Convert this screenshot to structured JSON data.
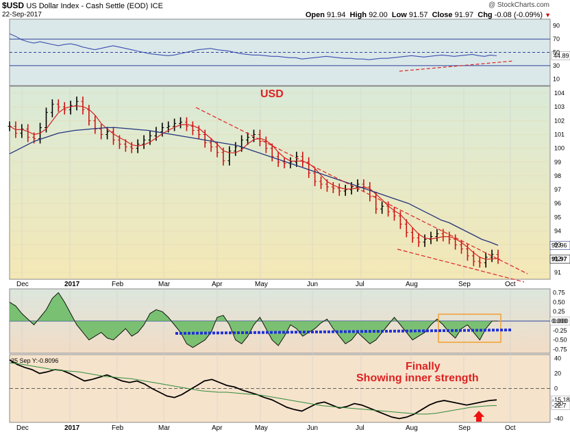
{
  "header": {
    "symbol": "$USD",
    "name": "US Dollar Index - Cash Settle (EOD)",
    "exchange": "ICE",
    "date": "22-Sep-2017",
    "copyright": "@ StockCharts.com",
    "open_label": "Open",
    "open": "91.94",
    "high_label": "High",
    "high": "92.00",
    "low_label": "Low",
    "low": "91.57",
    "close_label": "Close",
    "close": "91.97",
    "chg_label": "Chg",
    "chg": "-0.08 (-0.09%)",
    "down_arrow": "▼"
  },
  "annotations": {
    "usd": "USD",
    "finally": "Finally",
    "inner": "Showing inner strength",
    "cmf_label": "25 Sep Y:-0.8096"
  },
  "colors": {
    "price_bg": "#f3e9b6",
    "rsi_bg": "#dde9ea",
    "cmf_bg": "#f1dcc4",
    "bottom_bg": "#f7e7d3",
    "red": "#dd2222",
    "blue": "#2a3f9a",
    "green": "#33a035"
  },
  "chart_data": [
    {
      "type": "line",
      "panel": "RSI",
      "ylim": [
        0,
        100
      ],
      "yticks": [
        "90",
        "70",
        "50",
        "30",
        "10"
      ],
      "levels": [
        70,
        50,
        30
      ],
      "last_label": "44.89",
      "values": [
        78,
        74,
        69,
        66,
        64,
        66,
        64,
        62,
        60,
        62,
        63,
        61,
        58,
        56,
        54,
        56,
        58,
        60,
        58,
        56,
        54,
        52,
        50,
        48,
        47,
        46,
        45,
        46,
        48,
        50,
        52,
        54,
        55,
        56,
        54,
        53,
        52,
        50,
        48,
        47,
        46,
        46,
        45,
        44,
        44,
        43,
        42,
        42,
        40,
        41,
        42,
        43,
        44,
        43,
        42,
        41,
        41,
        40,
        40,
        39,
        40,
        41,
        41,
        42,
        43,
        44,
        45,
        44,
        43,
        44,
        45,
        46,
        45,
        44,
        45,
        46,
        47,
        45,
        44,
        46,
        44.89
      ]
    },
    {
      "type": "line",
      "panel": "price",
      "ylim": [
        90.5,
        104.5
      ],
      "yticks": [
        "104",
        "103",
        "102",
        "101",
        "100",
        "99",
        "98",
        "97",
        "96",
        "95",
        "94",
        "93",
        "92",
        "91"
      ],
      "xticks": [
        "Dec",
        "2017",
        "Feb",
        "Mar",
        "Apr",
        "May",
        "Jun",
        "Jul",
        "Aug",
        "Sep",
        "Oct"
      ],
      "price_labels": [
        "92.96",
        "91.97"
      ],
      "close_series": [
        101.6,
        101.1,
        101.4,
        100.8,
        100.7,
        101.5,
        102.6,
        103.2,
        103.0,
        102.8,
        103.1,
        103.4,
        102.8,
        102.0,
        101.4,
        101.0,
        101.2,
        100.6,
        100.3,
        100.1,
        100.0,
        100.3,
        100.6,
        100.9,
        101.2,
        101.5,
        101.6,
        101.8,
        101.9,
        101.6,
        101.3,
        101.0,
        100.4,
        100.1,
        99.7,
        99.1,
        99.8,
        100.1,
        100.6,
        100.8,
        101.0,
        100.5,
        100.0,
        99.4,
        99.0,
        98.9,
        99.0,
        99.4,
        99.0,
        98.2,
        97.6,
        97.4,
        97.2,
        97.1,
        96.9,
        97.0,
        97.2,
        97.4,
        97.2,
        96.5,
        95.6,
        95.8,
        95.4,
        95.1,
        94.5,
        93.9,
        93.5,
        93.2,
        93.4,
        93.6,
        93.8,
        93.6,
        93.4,
        93.0,
        92.7,
        92.2,
        91.8,
        91.7,
        92.1,
        92.3,
        91.97
      ],
      "ma50": [
        99.6,
        99.9,
        100.2,
        100.5,
        100.7,
        100.9,
        101.1,
        101.2,
        101.3,
        101.35,
        101.4,
        101.45,
        101.5,
        101.5,
        101.45,
        101.4,
        101.35,
        101.3,
        101.2,
        101.1,
        101.0,
        100.9,
        100.8,
        100.7,
        100.6,
        100.5,
        100.4,
        100.3,
        100.2,
        100.0,
        99.8,
        99.6,
        99.4,
        99.2,
        99.0,
        98.8,
        98.6,
        98.4,
        98.2,
        98.0,
        97.8,
        97.6,
        97.4,
        97.2,
        97.0,
        96.8,
        96.6,
        96.4,
        96.2,
        96.0,
        95.7,
        95.4,
        95.1,
        94.8,
        94.6,
        94.3,
        94.0,
        93.7,
        93.4,
        93.2,
        92.96
      ],
      "trendlines": [
        {
          "from": [
            "Mar",
            103.0
          ],
          "to": [
            "Oct",
            91.5
          ]
        },
        {
          "from": [
            "Aug",
            94.5
          ],
          "to": [
            "Oct",
            91.0
          ]
        }
      ]
    },
    {
      "type": "area",
      "panel": "CMF",
      "ylim": [
        -0.85,
        0.85
      ],
      "yticks": [
        "0.75",
        "0.50",
        "0.25",
        "0.000",
        "-0.25",
        "-0.50",
        "-0.75"
      ],
      "last_label": "0.000",
      "values": [
        0.5,
        0.4,
        0.2,
        0.05,
        -0.1,
        0.1,
        0.3,
        0.6,
        0.75,
        0.5,
        0.2,
        -0.1,
        -0.3,
        -0.5,
        -0.4,
        -0.3,
        -0.45,
        -0.5,
        -0.35,
        -0.2,
        -0.4,
        -0.3,
        -0.1,
        0.2,
        0.3,
        0.25,
        0.1,
        -0.1,
        -0.3,
        -0.6,
        -0.7,
        -0.6,
        -0.5,
        -0.3,
        0.1,
        0.15,
        -0.1,
        -0.5,
        -0.6,
        -0.4,
        -0.1,
        0.1,
        -0.2,
        -0.5,
        -0.65,
        -0.4,
        -0.1,
        -0.2,
        -0.4,
        -0.3,
        -0.2,
        -0.05,
        0.05,
        -0.2,
        -0.4,
        -0.6,
        -0.5,
        -0.3,
        -0.45,
        -0.6,
        -0.5,
        -0.3,
        -0.1,
        0.1,
        -0.1,
        -0.3,
        -0.5,
        -0.4,
        -0.3,
        -0.1,
        0.05,
        -0.1,
        -0.3,
        -0.45,
        -0.2,
        -0.1,
        -0.3,
        -0.5,
        -0.2,
        0.0,
        0.0
      ]
    },
    {
      "type": "line",
      "panel": "oscillator",
      "ylim": [
        -45,
        45
      ],
      "yticks": [
        "40",
        "20",
        "0",
        "-20",
        "-40"
      ],
      "last_labels": [
        "-15.18",
        "-22.7"
      ],
      "values": [
        38,
        32,
        28,
        25,
        20,
        22,
        25,
        24,
        20,
        15,
        10,
        12,
        15,
        18,
        14,
        10,
        8,
        10,
        6,
        0,
        -5,
        -10,
        -12,
        -8,
        -2,
        4,
        10,
        12,
        8,
        4,
        2,
        -2,
        -5,
        -8,
        -12,
        -15,
        -20,
        -25,
        -28,
        -30,
        -25,
        -20,
        -18,
        -22,
        -26,
        -24,
        -20,
        -22,
        -26,
        -30,
        -34,
        -38,
        -40,
        -38,
        -34,
        -28,
        -22,
        -18,
        -16,
        -18,
        -20,
        -22,
        -20,
        -18,
        -16,
        -15.18
      ],
      "signal": [
        34,
        33,
        31,
        29,
        27,
        25,
        24,
        23,
        22,
        20,
        18,
        16,
        15,
        14,
        13,
        11,
        9,
        7,
        5,
        3,
        1,
        -1,
        -3,
        -4,
        -5,
        -5,
        -6,
        -7,
        -8,
        -9,
        -11,
        -13,
        -15,
        -17,
        -19,
        -21,
        -23,
        -24,
        -25,
        -26,
        -27,
        -28,
        -29,
        -30,
        -31,
        -32,
        -33,
        -34,
        -34,
        -33,
        -31,
        -29,
        -27,
        -25,
        -24,
        -23,
        -22.7
      ]
    }
  ]
}
